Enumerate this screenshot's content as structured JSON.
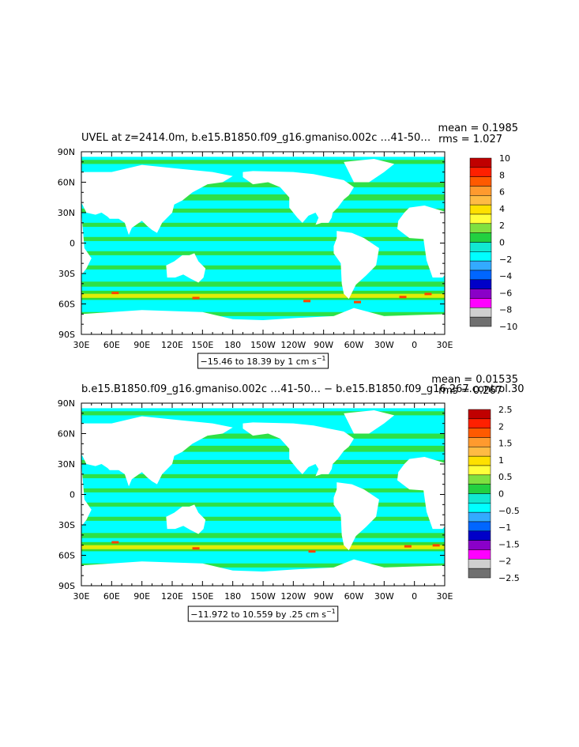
{
  "chart_data": [
    {
      "type": "heatmap",
      "title": "UVEL at z=2414.0m, b.e15.B1850.f09_g16.gmaniso.002c …41-50…",
      "stats": {
        "mean": "mean = 0.1985",
        "rms": "rms = 1.027"
      },
      "x_ticks": [
        "30E",
        "60E",
        "90E",
        "120E",
        "150E",
        "180",
        "150W",
        "120W",
        "90W",
        "60W",
        "30W",
        "0",
        "30E"
      ],
      "y_ticks": [
        "90N",
        "60N",
        "30N",
        "0",
        "30S",
        "60S",
        "90S"
      ],
      "range_label": "−15.46 to 18.39 by 1 cm s",
      "range_unit_sup": "−1",
      "colorbar": {
        "labels": [
          "10",
          "8",
          "6",
          "4",
          "2",
          "0",
          "−2",
          "−4",
          "−6",
          "−8",
          "−10"
        ],
        "colors": [
          "#c00000",
          "#ff2000",
          "#ff5a00",
          "#ff9a2e",
          "#ffbb44",
          "#ffe000",
          "#ffff3a",
          "#7fe040",
          "#22d040",
          "#11e8d2",
          "#00ffff",
          "#33aaff",
          "#0066ff",
          "#0000c8",
          "#8a00c8",
          "#ff00ff",
          "#cfcfcf",
          "#707070"
        ]
      },
      "field_colors": {
        "background": "#00ffff",
        "positive": "#33dd33",
        "strong": "#ffee00",
        "extreme": "#ff4400",
        "land": "#ffffff"
      }
    },
    {
      "type": "heatmap",
      "title": "b.e15.B1850.f09_g16.gmaniso.002c …41-50… − b.e15.B1850.f09_g16.267.control.30",
      "stats": {
        "mean": "mean = 0.01535",
        "rms": "rms = 0.267"
      },
      "x_ticks": [
        "30E",
        "60E",
        "90E",
        "120E",
        "150E",
        "180",
        "150W",
        "120W",
        "90W",
        "60W",
        "30W",
        "0",
        "30E"
      ],
      "y_ticks": [
        "90N",
        "60N",
        "30N",
        "0",
        "30S",
        "60S",
        "90S"
      ],
      "range_label": "−11.972 to 10.559 by .25 cm s",
      "range_unit_sup": "−1",
      "colorbar": {
        "labels": [
          "2.5",
          "2",
          "1.5",
          "1",
          "0.5",
          "0",
          "−0.5",
          "−1",
          "−1.5",
          "−2",
          "−2.5"
        ],
        "colors": [
          "#c00000",
          "#ff2000",
          "#ff5a00",
          "#ff9a2e",
          "#ffbb44",
          "#ffe000",
          "#ffff3a",
          "#7fe040",
          "#22d040",
          "#11e8d2",
          "#00ffff",
          "#33aaff",
          "#0066ff",
          "#0000c8",
          "#8a00c8",
          "#ff00ff",
          "#cfcfcf",
          "#707070"
        ]
      },
      "field_colors": {
        "background": "#00ffff",
        "positive": "#33dd33",
        "strong": "#ffee00",
        "extreme": "#ff4400",
        "land": "#ffffff"
      }
    }
  ]
}
